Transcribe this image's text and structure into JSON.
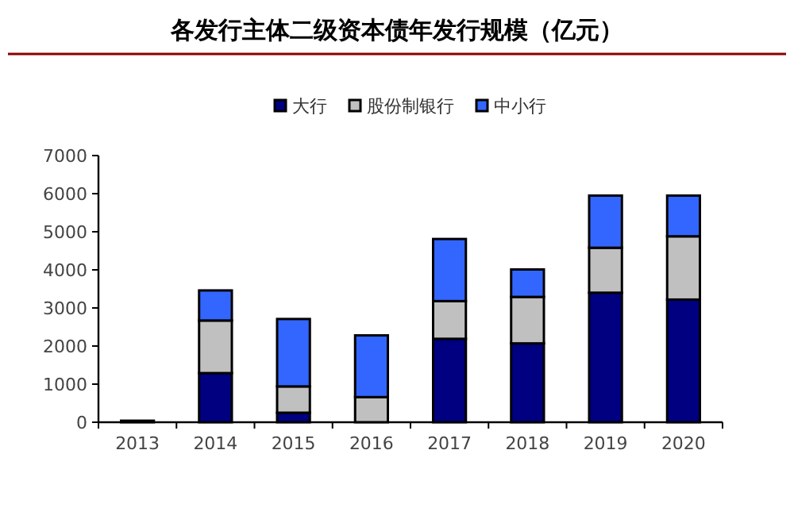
{
  "chart_data": {
    "type": "bar",
    "stacked": true,
    "title": "各发行主体二级资本债年发行规模（亿元）",
    "categories": [
      "2013",
      "2014",
      "2015",
      "2016",
      "2017",
      "2018",
      "2019",
      "2020"
    ],
    "series": [
      {
        "name": "大行",
        "color": "#000080",
        "values": [
          40,
          1290,
          250,
          0,
          2190,
          2070,
          3400,
          3220
        ]
      },
      {
        "name": "股份制银行",
        "color": "#c0c0c0",
        "values": [
          0,
          1380,
          690,
          660,
          990,
          1220,
          1180,
          1660
        ]
      },
      {
        "name": "中小行",
        "color": "#3366ff",
        "values": [
          0,
          790,
          1770,
          1620,
          1630,
          720,
          1370,
          1070
        ]
      }
    ],
    "ylim": [
      0,
      7000
    ],
    "yticks": [
      0,
      1000,
      2000,
      3000,
      4000,
      5000,
      6000,
      7000
    ],
    "legend": "top",
    "grid": false
  }
}
